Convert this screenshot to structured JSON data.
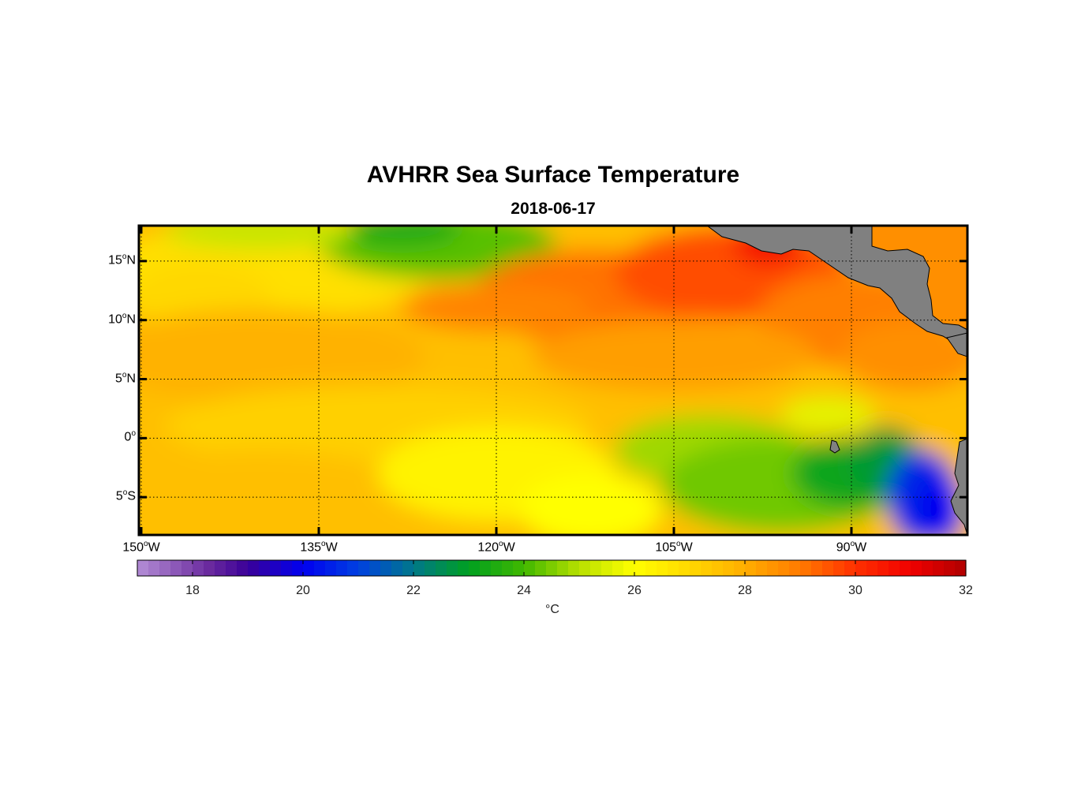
{
  "title": "AVHRR Sea Surface Temperature",
  "date": "2018-06-17",
  "lat_labels": [
    {
      "deg": "15",
      "hemi": "N",
      "lat": 15
    },
    {
      "deg": "10",
      "hemi": "N",
      "lat": 10
    },
    {
      "deg": "5",
      "hemi": "N",
      "lat": 5
    },
    {
      "deg": "0",
      "hemi": "",
      "lat": 0
    },
    {
      "deg": "5",
      "hemi": "S",
      "lat": -5
    }
  ],
  "lon_labels": [
    {
      "deg": "150",
      "hemi": "W",
      "lon": -150
    },
    {
      "deg": "135",
      "hemi": "W",
      "lon": -135
    },
    {
      "deg": "120",
      "hemi": "W",
      "lon": -120
    },
    {
      "deg": "105",
      "hemi": "W",
      "lon": -105
    },
    {
      "deg": "90",
      "hemi": "W",
      "lon": -90
    }
  ],
  "colorbar": {
    "ticks": [
      "18",
      "20",
      "22",
      "24",
      "26",
      "28",
      "30",
      "32"
    ],
    "min": 17,
    "max": 32,
    "unit": "°C"
  },
  "colors": {
    "land": "#808080",
    "cool": "#0000ff",
    "warm": "#ff3300"
  },
  "chart_data": {
    "type": "heatmap",
    "title": "AVHRR Sea Surface Temperature",
    "subtitle": "2018-06-17",
    "lon_range": [
      -150,
      -80
    ],
    "lat_range": [
      -8,
      18
    ],
    "value_range": [
      17,
      32
    ],
    "colorbar_label": "°C",
    "note": "approximate SST field in °C: warm 28-30 north of equator, cool tongue 20-24 along equator east of 105W"
  }
}
